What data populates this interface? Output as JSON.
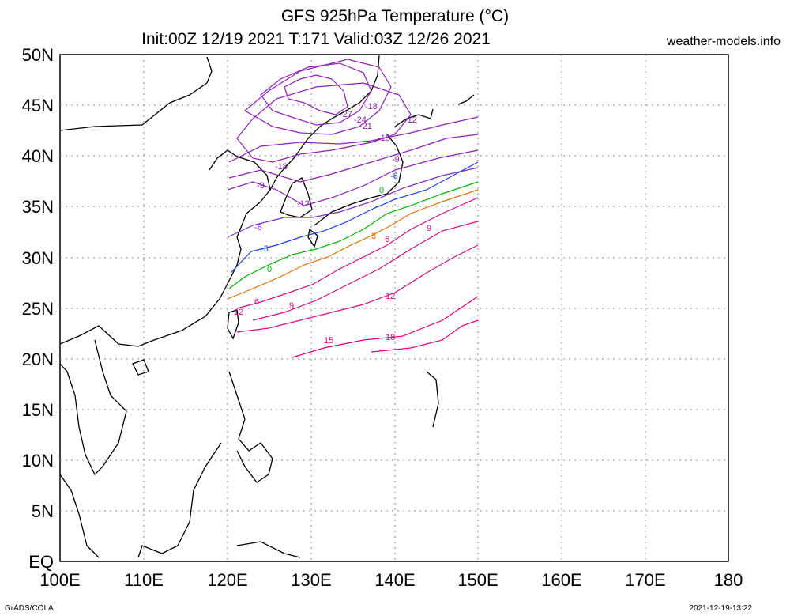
{
  "header": {
    "title_line1": "GFS 925hPa Temperature (°C)",
    "title_line2": "Init:00Z 12/19 2021 T:171 Valid:03Z 12/26 2021",
    "site": "weather-models.info"
  },
  "footer": {
    "left": "GrADS/COLA",
    "right": "2021-12-19-13:22"
  },
  "map": {
    "lon_labels": [
      "100E",
      "110E",
      "120E",
      "130E",
      "140E",
      "150E",
      "160E",
      "170E",
      "180"
    ],
    "lat_labels": [
      "EQ",
      "5N",
      "10N",
      "15N",
      "20N",
      "25N",
      "30N",
      "35N",
      "40N",
      "45N",
      "50N"
    ],
    "lon_range": [
      100,
      180
    ],
    "lat_range": [
      0,
      50
    ],
    "grid": true,
    "contour_labels": [
      "-27",
      "-24",
      "-21",
      "-18",
      "-18",
      "-15",
      "-12",
      "-12",
      "-9",
      "-9",
      "-6",
      "-6",
      "-3",
      "0",
      "0",
      "3",
      "6",
      "6",
      "9",
      "9",
      "12",
      "12",
      "12",
      "15",
      "18"
    ]
  },
  "colors": {
    "cold": "#8c1fb8",
    "cool": "#a020d0",
    "minus6": "#7a30c8",
    "minus3": "#1a3fe0",
    "zero": "#00b400",
    "plus3": "#e07000",
    "warm": "#d01080",
    "hot": "#e0007a"
  }
}
